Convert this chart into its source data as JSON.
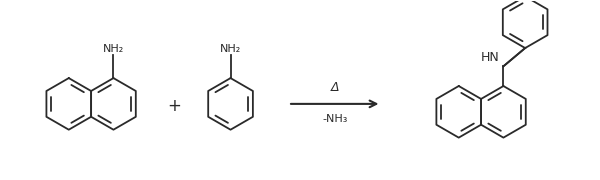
{
  "bg_color": "#ffffff",
  "line_color": "#2a2a2a",
  "text_color": "#2a2a2a",
  "arrow_above": "Δ",
  "arrow_below": "-NH₃",
  "plus_sign": "+",
  "reagent1_label": "NH₂",
  "reagent2_label": "NH₂",
  "product_label": "HN",
  "lw": 1.3,
  "r_ring": 0.26
}
